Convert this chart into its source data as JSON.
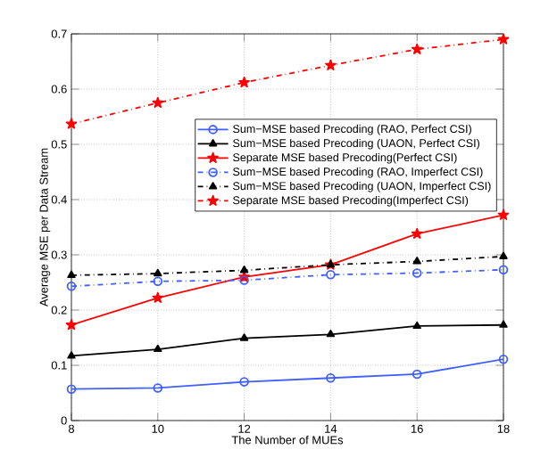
{
  "chart_data": {
    "type": "line",
    "xlabel": "The Number of MUEs",
    "ylabel": "Average MSE per Data Stream",
    "x": [
      8,
      10,
      12,
      14,
      16,
      18
    ],
    "xlim": [
      8,
      18
    ],
    "xticks": [
      8,
      10,
      12,
      14,
      16,
      18
    ],
    "ylim": [
      0,
      0.7
    ],
    "yticks": [
      0,
      0.1,
      0.2,
      0.3,
      0.4,
      0.5,
      0.6,
      0.7
    ],
    "grid": true,
    "legend": "top right",
    "series": [
      {
        "name": "Sum−MSE based Precoding (RAO, Perfect CSI)",
        "color": "#3f5fff",
        "marker": "circle",
        "line_style": "solid",
        "values": [
          0.057,
          0.059,
          0.07,
          0.077,
          0.084,
          0.111
        ]
      },
      {
        "name": "Sum−MSE based Precoding (UAON, Perfect CSI)",
        "color": "#000000",
        "marker": "triangle",
        "line_style": "solid",
        "values": [
          0.117,
          0.129,
          0.149,
          0.156,
          0.171,
          0.173
        ]
      },
      {
        "name": "Separate MSE based Precoding(Perfect CSI)",
        "color": "#ff0000",
        "marker": "star",
        "line_style": "solid",
        "values": [
          0.173,
          0.222,
          0.26,
          0.282,
          0.338,
          0.372
        ]
      },
      {
        "name": "Sum−MSE based Precoding (RAO, Imperfect CSI)",
        "color": "#3f5fff",
        "marker": "circle",
        "line_style": "dashed",
        "values": [
          0.243,
          0.252,
          0.254,
          0.264,
          0.267,
          0.273
        ]
      },
      {
        "name": "Sum−MSE based Precoding (UAON, Imperfect CSI)",
        "color": "#000000",
        "marker": "triangle",
        "line_style": "dashed",
        "values": [
          0.263,
          0.266,
          0.272,
          0.282,
          0.288,
          0.297
        ]
      },
      {
        "name": "Separate MSE based Precoding(Imperfect CSI)",
        "color": "#ff0000",
        "marker": "star",
        "line_style": "dashed",
        "values": [
          0.537,
          0.575,
          0.612,
          0.643,
          0.672,
          0.69
        ]
      }
    ]
  }
}
